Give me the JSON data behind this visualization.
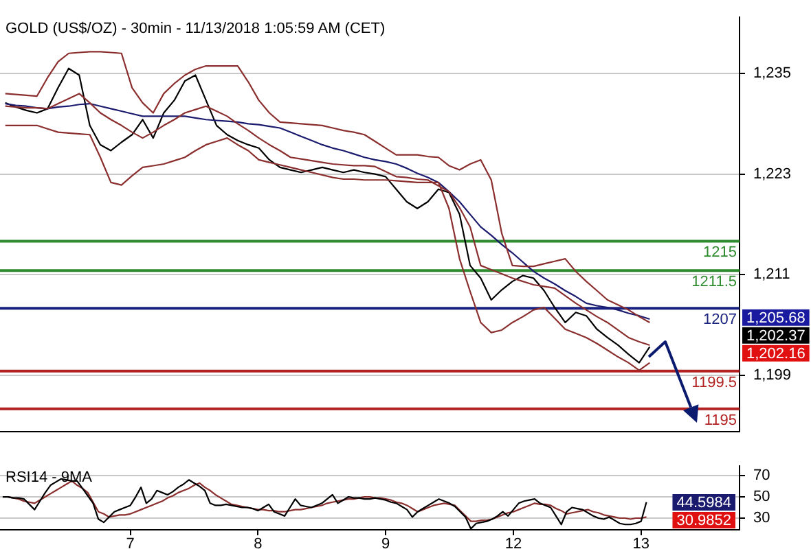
{
  "chart_data": [
    {
      "type": "line",
      "title": "GOLD (US$/OZ) - 30min - 11/13/2018 1:05:59 AM (CET)",
      "categories": [
        null,
        null,
        null,
        null,
        null,
        null,
        null,
        null,
        null,
        null,
        null,
        null,
        null,
        null,
        null,
        null,
        null,
        null,
        null,
        null,
        null,
        null,
        null,
        null,
        null,
        null,
        null,
        null,
        null,
        null,
        null,
        null,
        null,
        null,
        null,
        null,
        null,
        null,
        null,
        null,
        null,
        null,
        null,
        null,
        null,
        null,
        null,
        null,
        null,
        null,
        null,
        null,
        null,
        null,
        null,
        null,
        null,
        null,
        null,
        null,
        null,
        null,
        null,
        null,
        null,
        null,
        null,
        null,
        null,
        null
      ],
      "series": [
        {
          "color": "#8b2e2e",
          "values": [
            1232.6,
            1232.5,
            1232.4,
            1232.3,
            1234.5,
            1236.4,
            1237.4,
            1237.5,
            1237.6,
            1237.6,
            1237.5,
            1237.4,
            1233.3,
            1231.5,
            1230.3,
            1232.6,
            1233.8,
            1234.8,
            1235.5,
            1235.9,
            1235.9,
            1235.9,
            1235.9,
            1234.0,
            1231.8,
            1230.3,
            1229.2,
            1229.1,
            1229.0,
            1228.9,
            1228.8,
            1228.5,
            1228.2,
            1228.0,
            1227.7,
            1226.9,
            1226.1,
            1225.3,
            1225.3,
            1225.3,
            1225.1,
            1225.0,
            1224.0,
            1223.5,
            1224.2,
            1224.7,
            1222.3,
            1215.9,
            1212.1,
            1212.0,
            1212.0,
            1212.3,
            1212.6,
            1212.9,
            1211.4,
            1210.2,
            1209.1,
            1208.0,
            1207.4,
            1206.8,
            1206.0,
            1205.3,
            null,
            null,
            null,
            null,
            null,
            null,
            null,
            null
          ]
        },
        {
          "color": "#8b2e2e",
          "values": [
            1228.8,
            1228.8,
            1228.8,
            1228.8,
            1228.4,
            1228.0,
            1227.9,
            1227.8,
            1227.7,
            1225.0,
            1222.0,
            1221.7,
            1222.8,
            1223.8,
            1224.0,
            1224.2,
            1224.6,
            1225.0,
            1225.8,
            1226.5,
            1226.9,
            1227.3,
            1226.5,
            1225.8,
            1224.7,
            1224.4,
            1224.1,
            1223.8,
            1223.5,
            1223.2,
            1222.9,
            1222.6,
            1222.4,
            1222.4,
            1222.3,
            1222.3,
            1222.3,
            1222.2,
            1222.1,
            1222.0,
            1222.0,
            1222.0,
            1218.9,
            1212.9,
            1209.0,
            1205.3,
            1204.1,
            1204.4,
            1205.3,
            1206.0,
            1206.8,
            1207.1,
            1205.8,
            1204.5,
            1204.0,
            1203.5,
            1202.8,
            1202.0,
            1201.2,
            1200.5,
            1199.6,
            1200.5,
            null,
            null,
            null,
            null,
            null,
            null,
            null,
            null
          ]
        },
        {
          "color": "#8b2e2e",
          "values": [
            1231.1,
            1231.0,
            1230.9,
            1230.9,
            1230.8,
            1231.4,
            1232.0,
            1232.6,
            1231.5,
            1230.3,
            1229.5,
            1228.8,
            1228.0,
            1227.3,
            1228.0,
            1228.8,
            1229.5,
            1230.3,
            1230.7,
            1231.1,
            1230.5,
            1229.9,
            1229.0,
            1228.2,
            1227.3,
            1226.5,
            1225.8,
            1225.0,
            1224.8,
            1224.6,
            1224.4,
            1224.2,
            1224.1,
            1224.0,
            1224.0,
            1223.9,
            1223.3,
            1222.7,
            1222.6,
            1222.4,
            1222.3,
            1221.6,
            1220.9,
            1219.0,
            1216.7,
            1212.1,
            1211.6,
            1211.1,
            1210.6,
            1210.2,
            1209.8,
            1209.6,
            1209.4,
            1208.5,
            1207.6,
            1206.8,
            1206.0,
            1205.3,
            1204.4,
            1203.5,
            1203.0,
            1202.6,
            null,
            null,
            null,
            null,
            null,
            null,
            null,
            null
          ]
        },
        {
          "color": "#1a1a6e",
          "values": [
            1231.4,
            1231.2,
            1231.1,
            1230.9,
            1230.8,
            1231.0,
            1231.1,
            1231.3,
            1231.4,
            1231.1,
            1230.8,
            1230.5,
            1230.2,
            1229.9,
            1229.9,
            1229.9,
            1229.9,
            1229.9,
            1229.7,
            1229.5,
            1229.4,
            1229.3,
            1229.2,
            1229.0,
            1228.9,
            1228.7,
            1228.5,
            1228.0,
            1227.5,
            1227.0,
            1226.5,
            1226.1,
            1225.8,
            1225.4,
            1225.0,
            1224.7,
            1224.5,
            1224.2,
            1223.7,
            1223.1,
            1222.6,
            1222.0,
            1220.9,
            1219.7,
            1218.2,
            1216.7,
            1215.7,
            1214.6,
            1213.6,
            1212.5,
            1211.4,
            1210.6,
            1209.9,
            1209.1,
            1208.4,
            1207.6,
            1207.3,
            1207.1,
            1206.8,
            1206.4,
            1206.1,
            1205.7,
            null,
            null,
            null,
            null,
            null,
            null,
            null,
            null
          ]
        },
        {
          "color": "#000000",
          "values": [
            1231.5,
            1231.0,
            1230.6,
            1230.3,
            1230.8,
            1233.3,
            1235.6,
            1234.8,
            1228.8,
            1226.5,
            1225.8,
            1226.8,
            1227.7,
            1229.5,
            1227.3,
            1230.3,
            1231.8,
            1234.1,
            1234.8,
            1231.8,
            1228.8,
            1227.7,
            1227.0,
            1226.5,
            1226.1,
            1224.7,
            1223.8,
            1223.5,
            1223.2,
            1223.5,
            1223.8,
            1223.5,
            1223.2,
            1223.5,
            1223.2,
            1223.0,
            1222.7,
            1221.2,
            1219.7,
            1218.9,
            1219.7,
            1221.2,
            1220.8,
            1218.2,
            1212.1,
            1210.6,
            1208.0,
            1209.2,
            1210.2,
            1210.9,
            1210.6,
            1209.1,
            1207.1,
            1205.3,
            1206.5,
            1206.1,
            1204.5,
            1203.5,
            1202.6,
            1201.5,
            1200.5,
            1202.4,
            null,
            null,
            null,
            null,
            null,
            null,
            null,
            null
          ]
        }
      ],
      "ylim": [
        1192.3,
        1241.7
      ],
      "yticks": [
        {
          "value": 1199,
          "label": "1,199"
        },
        {
          "value": 1211,
          "label": "1,211"
        },
        {
          "value": 1223,
          "label": "1,223"
        },
        {
          "value": 1235,
          "label": "1,235"
        }
      ],
      "ref_lines": [
        {
          "axis": "y",
          "value": 1215,
          "label": "1215",
          "color": "#2e8b2e"
        },
        {
          "axis": "y",
          "value": 1211.5,
          "label": "1211.5",
          "color": "#2e8b2e"
        },
        {
          "axis": "y",
          "value": 1207,
          "label": "1207",
          "color": "#1a237e"
        },
        {
          "axis": "y",
          "value": 1199.5,
          "label": "1199.5",
          "color": "#b22222"
        },
        {
          "axis": "y",
          "value": 1195,
          "label": "1195",
          "color": "#b22222"
        }
      ],
      "annotations": [
        "1,205.68",
        "1,202.37",
        "1,202.16"
      ],
      "grid": "y",
      "tick_labels": "y"
    },
    {
      "type": "line",
      "title": "RSI14 - 9MA",
      "categories": [
        null,
        null,
        null,
        null,
        null,
        null,
        null,
        null,
        null,
        null,
        null,
        null,
        null,
        null,
        null,
        null,
        null,
        null,
        null,
        null,
        null,
        null,
        null,
        null,
        "7",
        null,
        null,
        null,
        null,
        null,
        null,
        null,
        null,
        null,
        null,
        null,
        null,
        null,
        null,
        null,
        null,
        null,
        null,
        null,
        null,
        null,
        null,
        null,
        "8",
        null,
        null,
        null,
        null,
        null,
        null,
        null,
        null,
        null,
        null,
        null,
        null,
        null,
        null,
        null,
        null,
        null,
        null,
        null,
        null,
        null,
        null,
        null,
        "9",
        null,
        null,
        null,
        null,
        null,
        null,
        null,
        null,
        null,
        null,
        null,
        null,
        null,
        null,
        null,
        null,
        null,
        null,
        null,
        null,
        null,
        null,
        null,
        "12",
        null,
        null,
        null,
        null,
        null,
        null,
        null,
        null,
        null,
        null,
        null,
        null,
        null,
        null,
        null,
        null,
        null,
        null,
        null,
        null,
        null,
        null,
        null,
        "13",
        null,
        null,
        null,
        null,
        null,
        null,
        null,
        null,
        null,
        null,
        null,
        null,
        null,
        null,
        null,
        null,
        null,
        null
      ],
      "series": [
        {
          "color": "#000000",
          "values": [
            50,
            50,
            49,
            49,
            48,
            43,
            38,
            46,
            54,
            61,
            64,
            67,
            66,
            65,
            65,
            58,
            51,
            44,
            29,
            26,
            31,
            36,
            38,
            40,
            42,
            50,
            59,
            44,
            48,
            56,
            54,
            52,
            55,
            59,
            62,
            66,
            63,
            60,
            56,
            44,
            42,
            42,
            43,
            42,
            41,
            40,
            40,
            39,
            37,
            40,
            43,
            36,
            34,
            32,
            40,
            48,
            42,
            41,
            40,
            42,
            44,
            48,
            52,
            44,
            47,
            50,
            49,
            49,
            48,
            48,
            49,
            48,
            47,
            45,
            44,
            41,
            38,
            31,
            36,
            39,
            42,
            45,
            48,
            46,
            44,
            41,
            36,
            31,
            20,
            25,
            26,
            27,
            29,
            32,
            36,
            32,
            38,
            44,
            46,
            47,
            48,
            44,
            42,
            40,
            32,
            24,
            36,
            40,
            39,
            38,
            35,
            32,
            30,
            29,
            31,
            28,
            25,
            24,
            24,
            25,
            27,
            45,
            null,
            null,
            null,
            null,
            null,
            null,
            null,
            null,
            null,
            null,
            null,
            null,
            null,
            null,
            null,
            null,
            null
          ]
        },
        {
          "color": "#8b2e2e",
          "values": [
            null,
            50,
            49,
            48,
            46,
            45,
            44,
            47,
            50,
            53,
            56,
            59,
            62,
            65,
            61,
            58,
            54,
            45,
            36,
            34,
            31,
            32,
            33,
            33,
            34,
            36,
            38,
            40,
            42,
            44,
            46,
            49,
            51,
            54,
            56,
            58,
            61,
            63,
            59,
            56,
            52,
            49,
            46,
            43,
            42,
            41,
            40,
            39,
            38,
            38,
            37,
            37,
            36,
            36,
            37,
            38,
            38,
            39,
            40,
            41,
            42,
            44,
            45,
            46,
            47,
            48,
            48,
            49,
            50,
            50,
            49,
            49,
            48,
            47,
            45,
            44,
            42,
            39,
            36,
            38,
            40,
            42,
            43,
            44,
            43,
            42,
            37,
            32,
            27,
            27,
            28,
            28,
            29,
            31,
            33,
            35,
            36,
            38,
            40,
            42,
            44,
            43,
            43,
            42,
            39,
            37,
            34,
            35,
            36,
            37,
            38,
            36,
            35,
            33,
            32,
            31,
            30,
            30,
            29,
            30,
            30,
            31,
            null,
            null,
            null,
            null,
            null,
            null,
            null,
            null,
            null,
            null,
            null,
            null,
            null,
            null,
            null,
            null,
            null
          ]
        }
      ],
      "ylim": [
        19,
        79
      ],
      "yticks": [
        30,
        50,
        70
      ],
      "annotations": [
        "44.5984",
        "30.9852"
      ],
      "grid": "y"
    }
  ]
}
